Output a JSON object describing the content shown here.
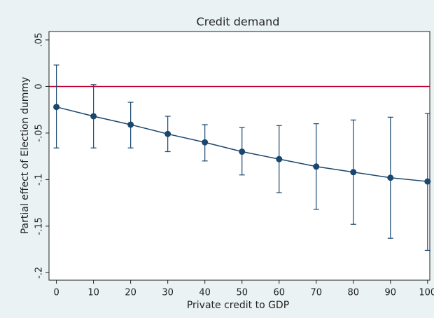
{
  "chart_data": {
    "type": "errorbar-line",
    "title": "Credit demand",
    "x_label": "Private credit to GDP",
    "y_label": "Partial effect of Election dummy",
    "x": [
      0,
      10,
      20,
      30,
      40,
      50,
      60,
      70,
      80,
      90,
      100
    ],
    "series": [
      {
        "color": "#1a476f",
        "values": [
          -0.022,
          -0.032,
          -0.041,
          -0.051,
          -0.06,
          -0.07,
          -0.078,
          -0.086,
          -0.092,
          -0.098,
          -0.102
        ],
        "ci_upper": [
          0.023,
          0.002,
          -0.017,
          -0.032,
          -0.041,
          -0.044,
          -0.042,
          -0.04,
          -0.036,
          -0.033,
          -0.029
        ],
        "ci_lower": [
          -0.066,
          -0.066,
          -0.066,
          -0.07,
          -0.08,
          -0.095,
          -0.114,
          -0.132,
          -0.148,
          -0.163,
          -0.176
        ]
      }
    ],
    "reference_line": {
      "value": 0,
      "color": "#c10534"
    },
    "xlim": [
      -2,
      100.6
    ],
    "ylim": [
      -0.208,
      0.059
    ],
    "xticks": [
      0,
      10,
      20,
      30,
      40,
      50,
      60,
      70,
      80,
      90,
      100
    ],
    "yticks": [
      {
        "value": 0.05,
        "label": ".05"
      },
      0,
      {
        "value": -0.05,
        "label": "-.05"
      },
      {
        "value": -0.1,
        "label": "-.1"
      },
      {
        "value": -0.15,
        "label": "-.15"
      },
      {
        "value": -0.2,
        "label": "-.2"
      }
    ],
    "grid": false
  }
}
